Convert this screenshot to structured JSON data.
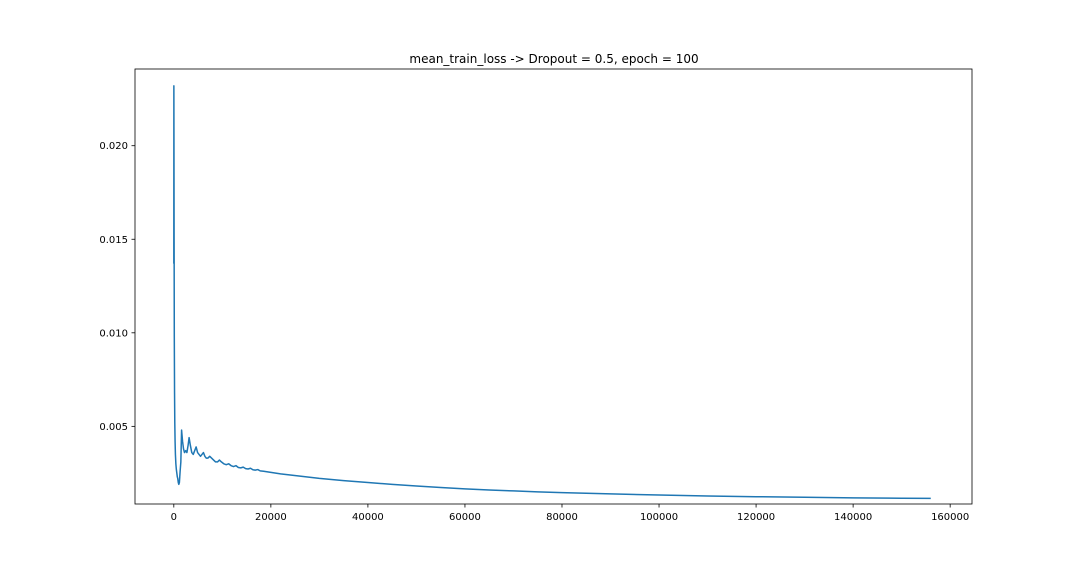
{
  "chart_data": {
    "type": "line",
    "title": "mean_train_loss -> Dropout = 0.5, epoch = 100",
    "xlabel": "",
    "ylabel": "",
    "xlim": [
      -8000,
      164500
    ],
    "ylim": [
      0.00085,
      0.0241
    ],
    "grid": false,
    "line_color": "#1f77b4",
    "x_ticks": [
      {
        "value": 0,
        "label": "0"
      },
      {
        "value": 20000,
        "label": "20000"
      },
      {
        "value": 40000,
        "label": "40000"
      },
      {
        "value": 60000,
        "label": "60000"
      },
      {
        "value": 80000,
        "label": "80000"
      },
      {
        "value": 100000,
        "label": "100000"
      },
      {
        "value": 120000,
        "label": "120000"
      },
      {
        "value": 140000,
        "label": "140000"
      },
      {
        "value": 160000,
        "label": "160000"
      }
    ],
    "y_ticks": [
      {
        "value": 0.005,
        "label": "0.005"
      },
      {
        "value": 0.01,
        "label": "0.010"
      },
      {
        "value": 0.015,
        "label": "0.015"
      },
      {
        "value": 0.02,
        "label": "0.020"
      }
    ],
    "series": [
      {
        "x": [
          0,
          10,
          30,
          60,
          100,
          150,
          200,
          260,
          330,
          420,
          520,
          620,
          720,
          820,
          920,
          1020,
          1150,
          1300,
          1450,
          1600,
          1800,
          2000,
          2200,
          2450,
          2700,
          2950,
          3150,
          3400,
          3700,
          4000,
          4300,
          4600,
          4900,
          5200,
          5500,
          5800,
          6100,
          6400,
          6700,
          7000,
          7400,
          7800,
          8200,
          8600,
          9000,
          9400,
          9800,
          10300,
          10800,
          11300,
          11800,
          12300,
          12800,
          13300,
          13800,
          14300,
          14800,
          15300,
          15800,
          16300,
          16800,
          17300,
          17800,
          18500,
          19500,
          20500,
          22000,
          24000,
          26000,
          28000,
          30000,
          35000,
          40000,
          45000,
          50000,
          55000,
          60000,
          65000,
          70000,
          75000,
          80000,
          90000,
          100000,
          110000,
          120000,
          130000,
          140000,
          150000,
          156000
        ],
        "y": [
          0.0137,
          0.0232,
          0.0205,
          0.015,
          0.0098,
          0.0068,
          0.0052,
          0.0042,
          0.0035,
          0.003,
          0.0027,
          0.0025,
          0.0023,
          0.0022,
          0.002,
          0.0019,
          0.002,
          0.0026,
          0.0031,
          0.0048,
          0.0042,
          0.0038,
          0.0036,
          0.0037,
          0.0036,
          0.004,
          0.0044,
          0.004,
          0.0036,
          0.0035,
          0.0037,
          0.0039,
          0.0036,
          0.0035,
          0.0034,
          0.0035,
          0.0036,
          0.0034,
          0.0033,
          0.0033,
          0.0034,
          0.0033,
          0.0032,
          0.0031,
          0.0031,
          0.0032,
          0.0031,
          0.003,
          0.00295,
          0.003,
          0.0029,
          0.00285,
          0.0029,
          0.0028,
          0.00278,
          0.00282,
          0.00274,
          0.00272,
          0.00276,
          0.00268,
          0.00266,
          0.00269,
          0.00262,
          0.0026,
          0.00256,
          0.00252,
          0.00246,
          0.0024,
          0.00234,
          0.00228,
          0.00222,
          0.0021,
          0.002,
          0.0019,
          0.00181,
          0.00173,
          0.00166,
          0.0016,
          0.00155,
          0.0015,
          0.00146,
          0.00139,
          0.00133,
          0.00128,
          0.00124,
          0.00121,
          0.00118,
          0.00116,
          0.00115
        ]
      }
    ]
  }
}
